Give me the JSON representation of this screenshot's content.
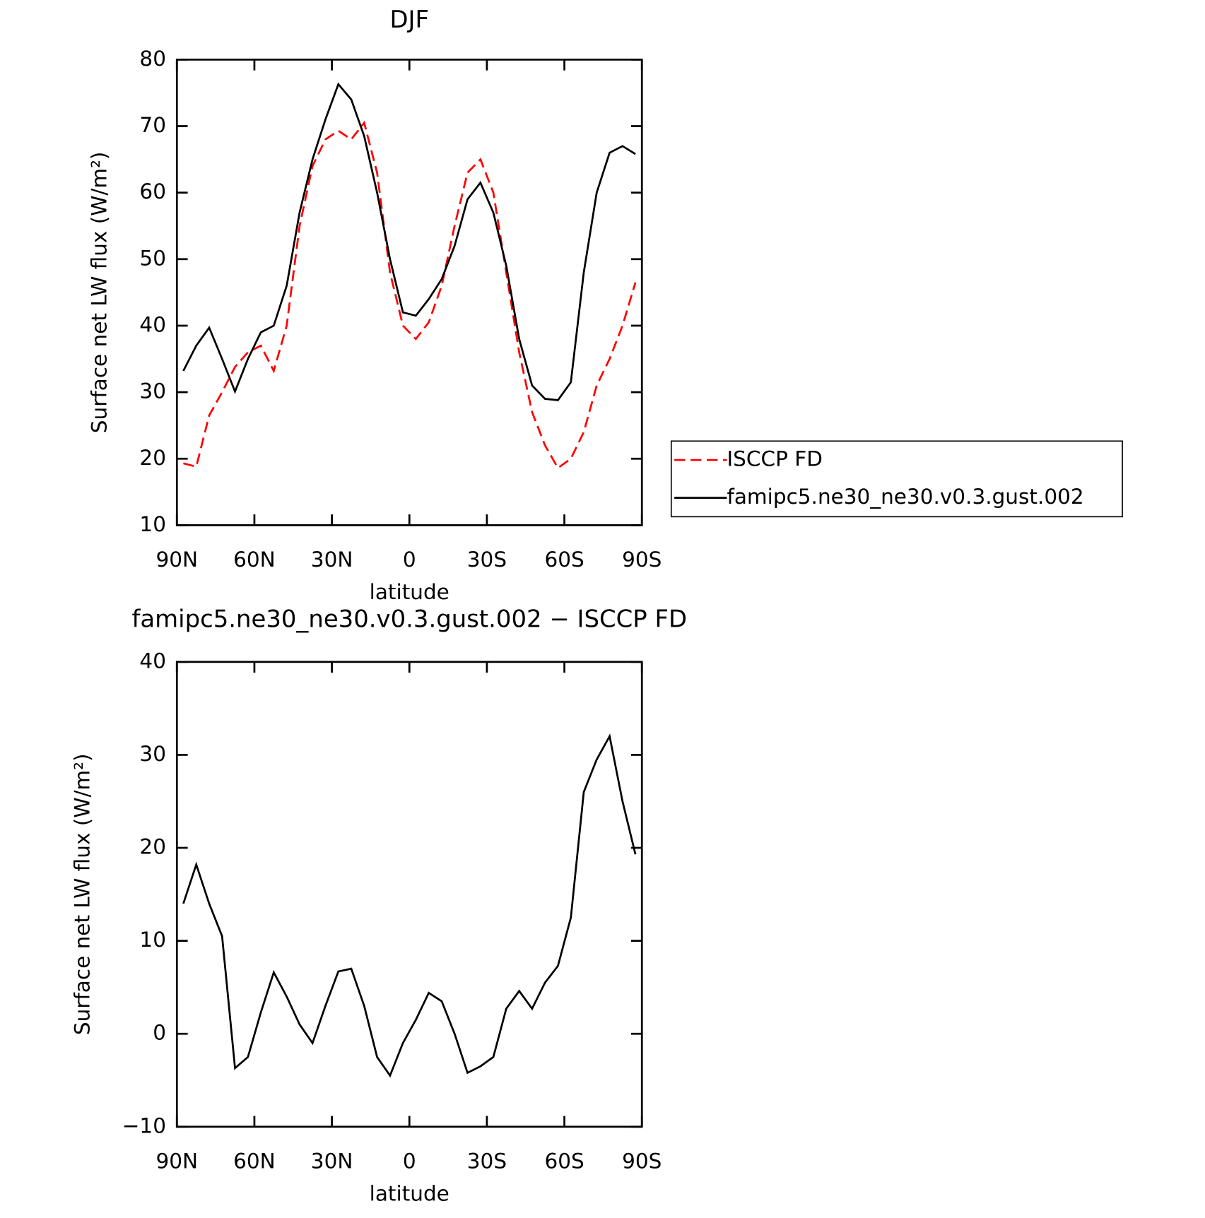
{
  "chart_data": [
    {
      "type": "line",
      "title": "DJF",
      "xlabel": "latitude",
      "ylabel": "Surface net LW flux (W/m²)",
      "x": [
        87.5,
        82.5,
        77.5,
        72.5,
        67.5,
        62.5,
        57.5,
        52.5,
        47.5,
        42.5,
        37.5,
        32.5,
        27.5,
        22.5,
        17.5,
        12.5,
        7.5,
        2.5,
        -2.5,
        -7.5,
        -12.5,
        -17.5,
        -22.5,
        -27.5,
        -32.5,
        -37.5,
        -42.5,
        -47.5,
        -52.5,
        -57.5,
        -62.5,
        -67.5,
        -72.5,
        -77.5,
        -82.5,
        -87.5
      ],
      "series": [
        {
          "name": "ISCCP FD",
          "color": "#ff0000",
          "dashed": true,
          "values": [
            19.3,
            18.8,
            26.5,
            30,
            33.8,
            36,
            37,
            33.2,
            40,
            55,
            64,
            68,
            69.3,
            68,
            70.5,
            63,
            48,
            40,
            38,
            40.5,
            46,
            55,
            63,
            65,
            60,
            48,
            36,
            27,
            22,
            18.6,
            20,
            24,
            31,
            35,
            40,
            46.5
          ]
        },
        {
          "name": "famipc5.ne30_ne30.v0.3.gust.002",
          "color": "#000000",
          "dashed": false,
          "values": [
            33.2,
            37,
            39.7,
            35,
            30.1,
            35,
            39,
            40,
            46,
            57,
            65,
            71,
            76.3,
            74,
            68.5,
            60,
            50,
            42,
            41.5,
            44,
            47,
            52,
            59,
            61.5,
            57,
            49,
            38,
            31,
            29,
            28.8,
            31.5,
            48,
            60,
            66,
            67,
            65.8
          ]
        }
      ],
      "xlim": [
        90,
        -90
      ],
      "xticks": [
        {
          "value": 90,
          "label": "90N"
        },
        {
          "value": 60,
          "label": "60N"
        },
        {
          "value": 30,
          "label": "30N"
        },
        0,
        {
          "value": -30,
          "label": "30S"
        },
        {
          "value": -60,
          "label": "60S"
        },
        {
          "value": -90,
          "label": "90S"
        }
      ],
      "ylim": [
        10,
        80
      ],
      "yticks": [
        10,
        20,
        30,
        40,
        50,
        60,
        70,
        80
      ],
      "legend": "right"
    },
    {
      "type": "line",
      "title": "famipc5.ne30_ne30.v0.3.gust.002 − ISCCP FD",
      "xlabel": "latitude",
      "ylabel": "Surface net LW flux (W/m²)",
      "x": [
        87.5,
        82.5,
        77.5,
        72.5,
        67.5,
        62.5,
        57.5,
        52.5,
        47.5,
        42.5,
        37.5,
        32.5,
        27.5,
        22.5,
        17.5,
        12.5,
        7.5,
        2.5,
        -2.5,
        -7.5,
        -12.5,
        -17.5,
        -22.5,
        -27.5,
        -32.5,
        -37.5,
        -42.5,
        -47.5,
        -52.5,
        -57.5,
        -62.5,
        -67.5,
        -72.5,
        -77.5,
        -82.5,
        -87.5
      ],
      "series": [
        {
          "color": "#000000",
          "dashed": false,
          "values": [
            14,
            18.2,
            14,
            10.5,
            -3.7,
            -2.5,
            2.3,
            6.6,
            4,
            1,
            -1,
            3,
            6.7,
            7,
            3,
            -2.5,
            -4.5,
            -1,
            1.5,
            4.4,
            3.5,
            0,
            -4.2,
            -3.5,
            -2.5,
            2.7,
            4.6,
            2.7,
            5.5,
            7.3,
            12.5,
            26,
            29.5,
            32,
            25,
            19.3
          ]
        }
      ],
      "xlim": [
        90,
        -90
      ],
      "xticks": [
        {
          "value": 90,
          "label": "90N"
        },
        {
          "value": 60,
          "label": "60N"
        },
        {
          "value": 30,
          "label": "30N"
        },
        0,
        {
          "value": -30,
          "label": "30S"
        },
        {
          "value": -60,
          "label": "60S"
        },
        {
          "value": -90,
          "label": "90S"
        }
      ],
      "ylim": [
        -10,
        40
      ],
      "yticks": [
        {
          "value": -10,
          "label": "−10"
        },
        0,
        10,
        20,
        30,
        40
      ]
    }
  ]
}
